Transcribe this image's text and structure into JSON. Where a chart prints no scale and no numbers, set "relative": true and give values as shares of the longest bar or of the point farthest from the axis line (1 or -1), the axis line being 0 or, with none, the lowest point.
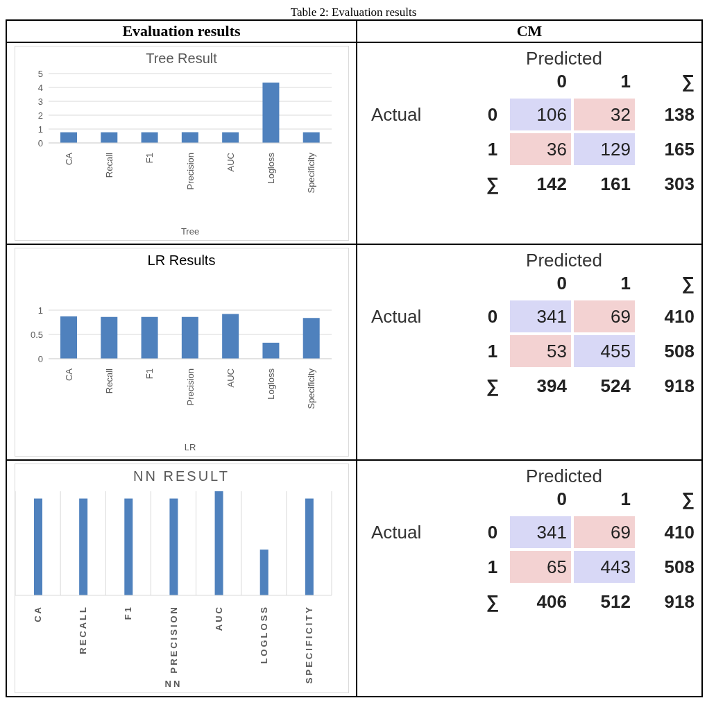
{
  "chart_data": [
    {
      "type": "bar",
      "title": "Tree Result",
      "xlabel": "Tree",
      "annotations": [
        "Table 2: Evaluation results",
        "Evaluation results"
      ],
      "categories": [
        "CA",
        "Recall",
        "F1",
        "Precision",
        "AUC",
        "Logloss",
        "Specificity"
      ],
      "values": [
        0.77,
        0.77,
        0.77,
        0.77,
        0.77,
        4.35,
        0.77
      ],
      "color": "#4f81bd",
      "ylim": [
        0,
        5
      ],
      "yticks": [
        0,
        1,
        2,
        3,
        4,
        5
      ],
      "grid": "y"
    },
    {
      "type": "heatmap",
      "xlabel": "Predicted",
      "ylabel": "Actual",
      "annotations": [
        "CM"
      ],
      "categories": [
        "0",
        "1",
        "∑"
      ],
      "y_categories": [
        "0",
        "1",
        "∑"
      ],
      "cells": [
        [
          106,
          32,
          138
        ],
        [
          36,
          129,
          165
        ],
        [
          142,
          161,
          303
        ]
      ],
      "data_labels": true
    },
    {
      "type": "bar",
      "title": "LR Results",
      "xlabel": "LR",
      "categories": [
        "CA",
        "Recall",
        "F1",
        "Precision",
        "AUC",
        "Logloss",
        "Specificity"
      ],
      "values": [
        0.87,
        0.86,
        0.86,
        0.86,
        0.92,
        0.33,
        0.84
      ],
      "color": "#4f81bd",
      "ylim": [
        0,
        1
      ],
      "yticks": [
        0,
        0.5,
        1
      ],
      "grid": "y"
    },
    {
      "type": "heatmap",
      "xlabel": "Predicted",
      "ylabel": "Actual",
      "categories": [
        "0",
        "1",
        "∑"
      ],
      "y_categories": [
        "0",
        "1",
        "∑"
      ],
      "cells": [
        [
          341,
          69,
          410
        ],
        [
          53,
          455,
          508
        ],
        [
          394,
          524,
          918
        ]
      ],
      "data_labels": true
    },
    {
      "type": "bar",
      "title": "NN RESULT",
      "xlabel": "NN",
      "relative": true,
      "categories": [
        "CA",
        "RECALL",
        "F1",
        "PRECISION",
        "AUC",
        "LOGLOSS",
        "SPECIFICITY"
      ],
      "values": [
        0.93,
        0.93,
        0.93,
        0.93,
        1,
        0.44,
        0.93
      ],
      "color": "#4f81bd",
      "grid": "x"
    },
    {
      "type": "heatmap",
      "xlabel": "Predicted",
      "ylabel": "Actual",
      "categories": [
        "0",
        "1",
        "∑"
      ],
      "y_categories": [
        "0",
        "1",
        "∑"
      ],
      "cells": [
        [
          341,
          69,
          410
        ],
        [
          65,
          443,
          508
        ],
        [
          406,
          512,
          918
        ]
      ],
      "data_labels": true
    }
  ]
}
